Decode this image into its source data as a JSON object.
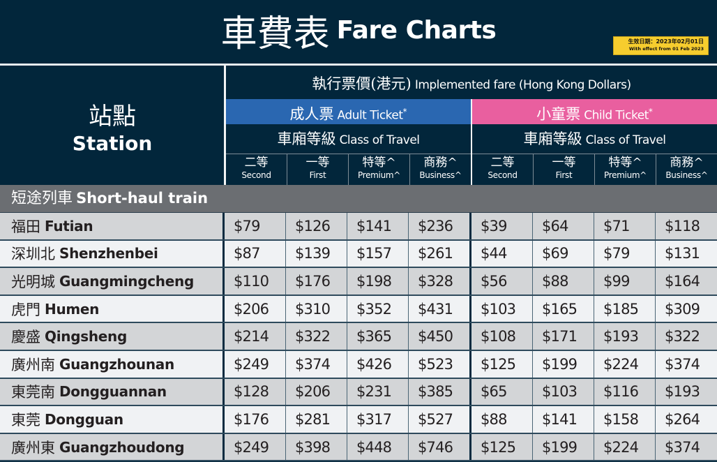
{
  "title": {
    "zh": "車費表",
    "en": "Fare Charts"
  },
  "effective_badge": {
    "zh": "生效日期：2023年02月01日",
    "en": "With effect from 01 Feb 2023",
    "color": "#f6cd2e"
  },
  "header": {
    "station": {
      "zh": "站點",
      "en": "Station"
    },
    "implemented_fare": {
      "zh": "執行票價(港元)",
      "en": "Implemented fare (Hong Kong Dollars)"
    },
    "adult": {
      "zh": "成人票",
      "en": "Adult Ticket",
      "mark": "*",
      "color": "#2a67b1"
    },
    "child": {
      "zh": "小童票",
      "en": "Child Ticket",
      "mark": "*",
      "color": "#e95f9f"
    },
    "class_of_travel": {
      "zh": "車廂等級",
      "en": "Class of Travel"
    },
    "classes": [
      {
        "zh": "二等",
        "en": "Second"
      },
      {
        "zh": "一等",
        "en": "First"
      },
      {
        "zh": "特等^",
        "en": "Premium^"
      },
      {
        "zh": "商務^",
        "en": "Business^"
      }
    ]
  },
  "section": {
    "zh": "短途列車",
    "en": "Short-haul train"
  },
  "rows": [
    {
      "zh": "福田",
      "en": "Futian",
      "adult": [
        "$79",
        "$126",
        "$141",
        "$236"
      ],
      "child": [
        "$39",
        "$64",
        "$71",
        "$118"
      ]
    },
    {
      "zh": "深圳北",
      "en": "Shenzhenbei",
      "adult": [
        "$87",
        "$139",
        "$157",
        "$261"
      ],
      "child": [
        "$44",
        "$69",
        "$79",
        "$131"
      ]
    },
    {
      "zh": "光明城",
      "en": "Guangmingcheng",
      "adult": [
        "$110",
        "$176",
        "$198",
        "$328"
      ],
      "child": [
        "$56",
        "$88",
        "$99",
        "$164"
      ]
    },
    {
      "zh": "虎門",
      "en": "Humen",
      "adult": [
        "$206",
        "$310",
        "$352",
        "$431"
      ],
      "child": [
        "$103",
        "$165",
        "$185",
        "$309"
      ]
    },
    {
      "zh": "慶盛",
      "en": "Qingsheng",
      "adult": [
        "$214",
        "$322",
        "$365",
        "$450"
      ],
      "child": [
        "$108",
        "$171",
        "$193",
        "$322"
      ]
    },
    {
      "zh": "廣州南",
      "en": "Guangzhounan",
      "adult": [
        "$249",
        "$374",
        "$426",
        "$523"
      ],
      "child": [
        "$125",
        "$199",
        "$224",
        "$374"
      ]
    },
    {
      "zh": "東莞南",
      "en": "Dongguannan",
      "adult": [
        "$128",
        "$206",
        "$231",
        "$385"
      ],
      "child": [
        "$65",
        "$103",
        "$116",
        "$193"
      ]
    },
    {
      "zh": "東莞",
      "en": "Dongguan",
      "adult": [
        "$176",
        "$281",
        "$317",
        "$527"
      ],
      "child": [
        "$88",
        "$141",
        "$158",
        "$264"
      ]
    },
    {
      "zh": "廣州東",
      "en": "Guangzhoudong",
      "adult": [
        "$249",
        "$398",
        "$448",
        "$746"
      ],
      "child": [
        "$125",
        "$199",
        "$224",
        "$374"
      ]
    }
  ]
}
